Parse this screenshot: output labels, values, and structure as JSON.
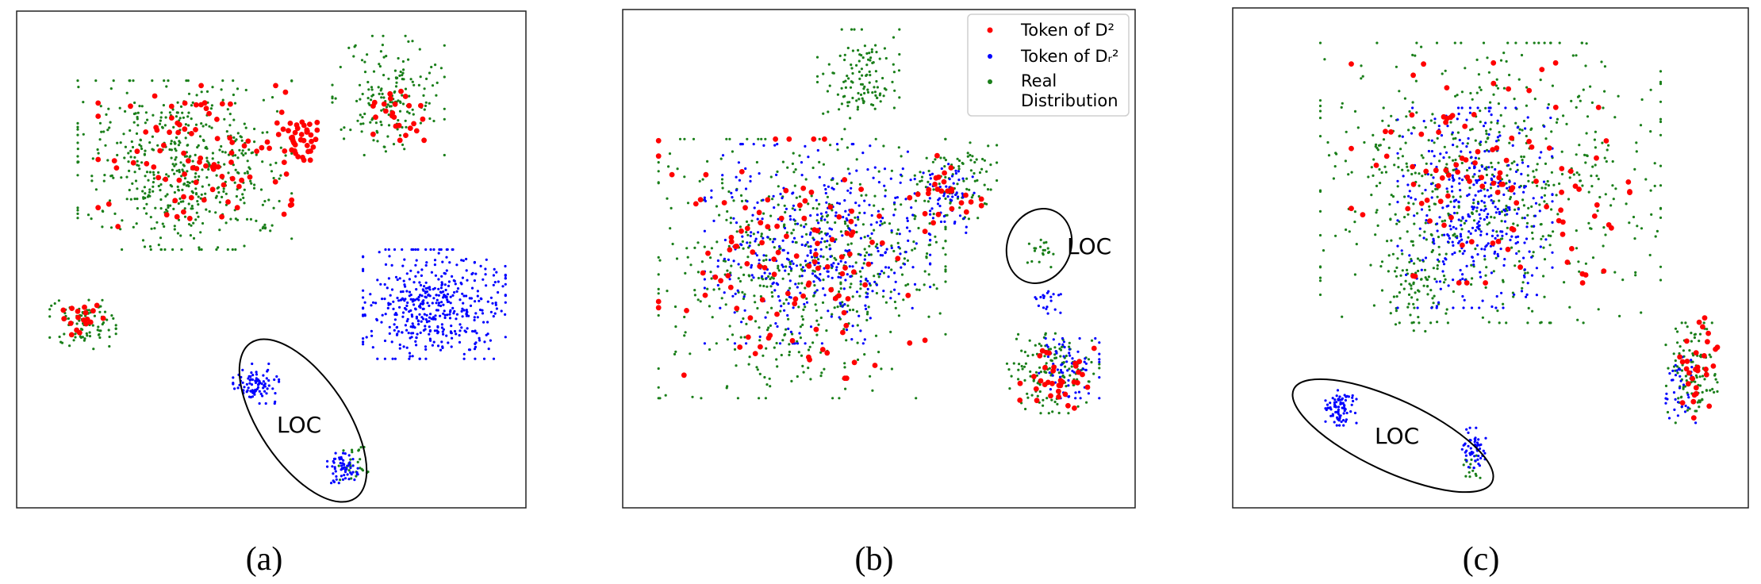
{
  "figure": {
    "captions": [
      "(a)",
      "(b)",
      "(c)"
    ]
  },
  "chart_data": [
    {
      "type": "scatter",
      "panel": "(a)",
      "annotation": "LOC",
      "legend": null,
      "colors": {
        "red": "#ff0000",
        "blue": "#0000ff",
        "green": "#1a7f1a"
      },
      "clusters": [
        {
          "series": "Real Distribution",
          "color": "green",
          "cx": 0.33,
          "cy": 0.31,
          "rx": 0.21,
          "ry": 0.17,
          "n": 520,
          "size": 1.6
        },
        {
          "series": "Real Distribution",
          "color": "green",
          "cx": 0.73,
          "cy": 0.17,
          "rx": 0.11,
          "ry": 0.12,
          "n": 170,
          "size": 1.6
        },
        {
          "series": "Real Distribution",
          "color": "green",
          "cx": 0.13,
          "cy": 0.63,
          "rx": 0.065,
          "ry": 0.05,
          "n": 90,
          "size": 1.6
        },
        {
          "series": "Real Distribution",
          "color": "green",
          "cx": 0.66,
          "cy": 0.91,
          "rx": 0.03,
          "ry": 0.035,
          "n": 25,
          "size": 1.6
        },
        {
          "series": "Token of D^2",
          "color": "red",
          "cx": 0.35,
          "cy": 0.3,
          "rx": 0.19,
          "ry": 0.15,
          "n": 95,
          "size": 3.4
        },
        {
          "series": "Token of D^2",
          "color": "red",
          "cx": 0.55,
          "cy": 0.25,
          "rx": 0.04,
          "ry": 0.05,
          "n": 40,
          "size": 3.4
        },
        {
          "series": "Token of D^2",
          "color": "red",
          "cx": 0.75,
          "cy": 0.2,
          "rx": 0.05,
          "ry": 0.06,
          "n": 25,
          "size": 3.4
        },
        {
          "series": "Token of D^2",
          "color": "red",
          "cx": 0.12,
          "cy": 0.62,
          "rx": 0.05,
          "ry": 0.04,
          "n": 18,
          "size": 3.4
        },
        {
          "series": "Token of D_r^2",
          "color": "blue",
          "cx": 0.82,
          "cy": 0.59,
          "rx": 0.14,
          "ry": 0.11,
          "n": 460,
          "size": 1.6
        },
        {
          "series": "Token of D_r^2",
          "color": "blue",
          "cx": 0.47,
          "cy": 0.75,
          "rx": 0.045,
          "ry": 0.04,
          "n": 90,
          "size": 1.6
        },
        {
          "series": "Token of D_r^2",
          "color": "blue",
          "cx": 0.64,
          "cy": 0.92,
          "rx": 0.03,
          "ry": 0.03,
          "n": 60,
          "size": 1.6
        }
      ]
    },
    {
      "type": "scatter",
      "panel": "(b)",
      "annotation": "LOC",
      "legend": {
        "placement": "top-right",
        "entries": [
          {
            "label_lines": [
              "Token of D²"
            ],
            "color": "red"
          },
          {
            "label_lines": [
              "Token of Dᵣ²"
            ],
            "color": "blue"
          },
          {
            "label_lines": [
              "Real",
              "Distribution"
            ],
            "color": "green"
          }
        ]
      },
      "colors": {
        "red": "#ff0000",
        "blue": "#0000ff",
        "green": "#1a7f1a"
      },
      "clusters": [
        {
          "series": "Real Distribution",
          "color": "green",
          "cx": 0.35,
          "cy": 0.52,
          "rx": 0.28,
          "ry": 0.26,
          "n": 560,
          "size": 1.6
        },
        {
          "series": "Real Distribution",
          "color": "green",
          "cx": 0.46,
          "cy": 0.14,
          "rx": 0.08,
          "ry": 0.1,
          "n": 120,
          "size": 1.6
        },
        {
          "series": "Real Distribution",
          "color": "green",
          "cx": 0.65,
          "cy": 0.34,
          "rx": 0.08,
          "ry": 0.08,
          "n": 90,
          "size": 1.6
        },
        {
          "series": "Real Distribution",
          "color": "green",
          "cx": 0.84,
          "cy": 0.73,
          "rx": 0.09,
          "ry": 0.08,
          "n": 140,
          "size": 1.6
        },
        {
          "series": "Real Distribution",
          "color": "green",
          "cx": 0.82,
          "cy": 0.48,
          "rx": 0.03,
          "ry": 0.04,
          "n": 20,
          "size": 1.6
        },
        {
          "series": "Token of D_r^2",
          "color": "blue",
          "cx": 0.38,
          "cy": 0.47,
          "rx": 0.22,
          "ry": 0.2,
          "n": 420,
          "size": 1.6
        },
        {
          "series": "Token of D_r^2",
          "color": "blue",
          "cx": 0.63,
          "cy": 0.38,
          "rx": 0.06,
          "ry": 0.07,
          "n": 60,
          "size": 1.6
        },
        {
          "series": "Token of D_r^2",
          "color": "blue",
          "cx": 0.87,
          "cy": 0.72,
          "rx": 0.06,
          "ry": 0.06,
          "n": 70,
          "size": 1.6
        },
        {
          "series": "Token of D_r^2",
          "color": "blue",
          "cx": 0.83,
          "cy": 0.58,
          "rx": 0.025,
          "ry": 0.03,
          "n": 20,
          "size": 1.6
        },
        {
          "series": "Token of D^2",
          "color": "red",
          "cx": 0.33,
          "cy": 0.5,
          "rx": 0.26,
          "ry": 0.24,
          "n": 120,
          "size": 3.4
        },
        {
          "series": "Token of D^2",
          "color": "red",
          "cx": 0.63,
          "cy": 0.36,
          "rx": 0.07,
          "ry": 0.08,
          "n": 25,
          "size": 3.4
        },
        {
          "series": "Token of D^2",
          "color": "red",
          "cx": 0.84,
          "cy": 0.74,
          "rx": 0.08,
          "ry": 0.06,
          "n": 35,
          "size": 3.4
        }
      ]
    },
    {
      "type": "scatter",
      "panel": "(c)",
      "annotation": "LOC",
      "legend": null,
      "colors": {
        "red": "#ff0000",
        "blue": "#0000ff",
        "green": "#1a7f1a"
      },
      "clusters": [
        {
          "series": "Real Distribution",
          "color": "green",
          "cx": 0.5,
          "cy": 0.35,
          "rx": 0.33,
          "ry": 0.28,
          "n": 620,
          "size": 1.6
        },
        {
          "series": "Real Distribution",
          "color": "green",
          "cx": 0.35,
          "cy": 0.55,
          "rx": 0.06,
          "ry": 0.1,
          "n": 60,
          "size": 1.6
        },
        {
          "series": "Real Distribution",
          "color": "green",
          "cx": 0.89,
          "cy": 0.73,
          "rx": 0.05,
          "ry": 0.1,
          "n": 110,
          "size": 1.6
        },
        {
          "series": "Real Distribution",
          "color": "green",
          "cx": 0.46,
          "cy": 0.92,
          "rx": 0.02,
          "ry": 0.03,
          "n": 15,
          "size": 1.6
        },
        {
          "series": "Token of D_r^2",
          "color": "blue",
          "cx": 0.47,
          "cy": 0.4,
          "rx": 0.15,
          "ry": 0.2,
          "n": 380,
          "size": 1.6
        },
        {
          "series": "Token of D_r^2",
          "color": "blue",
          "cx": 0.21,
          "cy": 0.8,
          "rx": 0.03,
          "ry": 0.035,
          "n": 80,
          "size": 1.6
        },
        {
          "series": "Token of D_r^2",
          "color": "blue",
          "cx": 0.47,
          "cy": 0.88,
          "rx": 0.025,
          "ry": 0.04,
          "n": 55,
          "size": 1.6
        },
        {
          "series": "Token of D_r^2",
          "color": "blue",
          "cx": 0.87,
          "cy": 0.76,
          "rx": 0.03,
          "ry": 0.07,
          "n": 40,
          "size": 1.6
        },
        {
          "series": "Token of D^2",
          "color": "red",
          "cx": 0.5,
          "cy": 0.33,
          "rx": 0.27,
          "ry": 0.22,
          "n": 110,
          "size": 3.4
        },
        {
          "series": "Token of D^2",
          "color": "red",
          "cx": 0.9,
          "cy": 0.72,
          "rx": 0.04,
          "ry": 0.1,
          "n": 30,
          "size": 3.4
        }
      ]
    }
  ]
}
